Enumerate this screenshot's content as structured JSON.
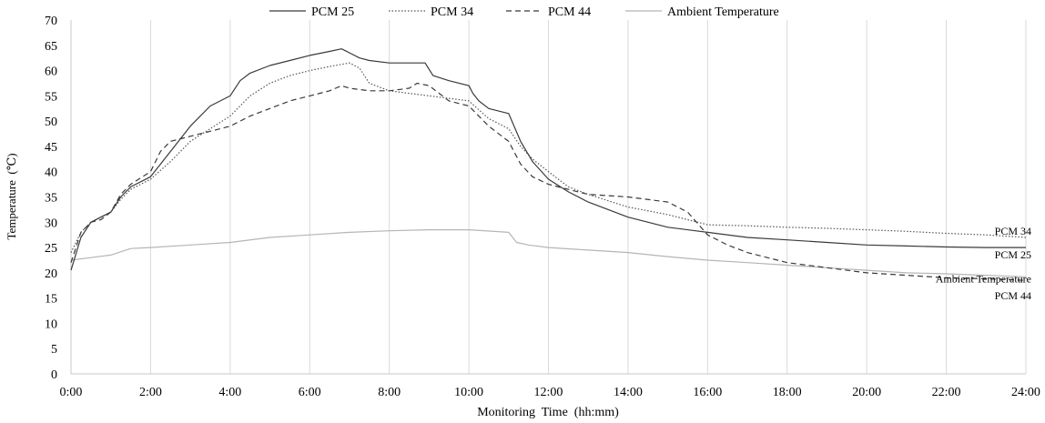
{
  "chart_data": {
    "type": "line",
    "title": "",
    "xlabel": "Monitoring  Time  (hh:mm)",
    "ylabel": "Temperature  (℃)",
    "xlim": [
      0,
      24
    ],
    "ylim": [
      0,
      70
    ],
    "y_ticks": [
      0,
      5,
      10,
      15,
      20,
      25,
      30,
      35,
      40,
      45,
      50,
      55,
      60,
      65,
      70
    ],
    "x_ticks": [
      0,
      2,
      4,
      6,
      8,
      10,
      12,
      14,
      16,
      18,
      20,
      22,
      24
    ],
    "x_tick_labels": [
      "0:00",
      "2:00",
      "4:00",
      "6:00",
      "8:00",
      "10:00",
      "12:00",
      "14:00",
      "16:00",
      "18:00",
      "20:00",
      "22:00",
      "24:00"
    ],
    "legend_position": "top",
    "grid": "vertical",
    "series": [
      {
        "name": "PCM 25",
        "end_label": "PCM 25",
        "color": "#3a3a3a",
        "dash": "solid",
        "x": [
          0,
          0.25,
          0.5,
          0.75,
          1,
          1.25,
          1.5,
          2,
          2.5,
          3,
          3.5,
          4,
          4.25,
          4.5,
          5,
          5.5,
          6,
          6.5,
          6.8,
          7,
          7.25,
          7.5,
          8,
          8.5,
          8.9,
          9.1,
          9.5,
          10,
          10.1,
          10.25,
          10.5,
          11,
          11.3,
          11.6,
          12,
          12.5,
          13,
          14,
          15,
          16,
          17,
          18,
          19,
          20,
          21,
          22,
          23,
          24
        ],
        "y": [
          20.5,
          27,
          30,
          31,
          32,
          35,
          37,
          39,
          44,
          49,
          53,
          55,
          58,
          59.5,
          61,
          62,
          63,
          63.8,
          64.3,
          63.5,
          62.5,
          62,
          61.5,
          61.5,
          61.5,
          59,
          58,
          57,
          55.5,
          54,
          52.5,
          51.5,
          46,
          42,
          38.5,
          36,
          34,
          31,
          29,
          28,
          27,
          26.5,
          26,
          25.5,
          25.3,
          25.1,
          25,
          25
        ]
      },
      {
        "name": "PCM 34",
        "end_label": "PCM 34",
        "color": "#555555",
        "dash": "dotted",
        "x": [
          0,
          0.25,
          0.5,
          0.75,
          1,
          1.25,
          1.5,
          2,
          2.5,
          3,
          3.5,
          4,
          4.5,
          5,
          5.5,
          6,
          6.5,
          7,
          7.25,
          7.5,
          8,
          8.5,
          9,
          9.5,
          10,
          10.5,
          11,
          11.3,
          11.6,
          12,
          12.5,
          13,
          14,
          15,
          16,
          17,
          18,
          19,
          20,
          21,
          22,
          23,
          24
        ],
        "y": [
          24,
          28,
          30,
          31,
          32,
          34.5,
          36.5,
          38.5,
          42,
          46,
          48.5,
          51,
          55,
          57.5,
          59,
          60,
          60.8,
          61.5,
          60.5,
          57.5,
          56,
          55.5,
          55,
          54.5,
          54,
          50.5,
          48.5,
          45,
          42.5,
          40,
          37,
          35.5,
          33,
          31.5,
          29.5,
          29.3,
          29,
          28.8,
          28.5,
          28.2,
          27.8,
          27.5,
          27
        ]
      },
      {
        "name": "PCM 44",
        "end_label": "PCM 44",
        "color": "#3a3a3a",
        "dash": "dashed",
        "x": [
          0,
          0.25,
          0.5,
          0.75,
          1,
          1.25,
          1.5,
          2,
          2.25,
          2.5,
          3,
          3.5,
          4,
          4.5,
          5,
          5.5,
          6,
          6.5,
          6.8,
          7,
          7.5,
          8,
          8.5,
          8.7,
          9,
          9.5,
          10,
          10.5,
          11,
          11.3,
          11.6,
          12,
          12.5,
          13,
          14,
          15,
          15.5,
          16,
          16.5,
          17,
          18,
          19,
          20,
          21,
          22,
          23,
          24
        ],
        "y": [
          22,
          28,
          30,
          30.5,
          32,
          35.5,
          37.5,
          40,
          44,
          46,
          47,
          48,
          49,
          51,
          52.5,
          54,
          55,
          56,
          57,
          56.5,
          56,
          56,
          56.5,
          57.5,
          57,
          54,
          53,
          49,
          46,
          41.5,
          39,
          37.5,
          36.5,
          35.5,
          35,
          34,
          32,
          27.5,
          25.5,
          24,
          22,
          21,
          20,
          19.5,
          19,
          18.8,
          18.5
        ]
      },
      {
        "name": "Ambient Temperature",
        "end_label": "Ambient Temperature",
        "color": "#b5b5b5",
        "dash": "solid",
        "x": [
          0,
          0.5,
          1,
          1.5,
          2,
          3,
          4,
          5,
          6,
          7,
          8,
          9,
          10,
          11,
          11.2,
          11.5,
          12,
          13,
          14,
          15,
          16,
          17,
          18,
          19,
          20,
          21,
          22,
          23,
          24
        ],
        "y": [
          22.5,
          23,
          23.5,
          24.8,
          25,
          25.5,
          26,
          27,
          27.5,
          28,
          28.3,
          28.5,
          28.5,
          28,
          26,
          25.5,
          25,
          24.5,
          24,
          23.2,
          22.5,
          22,
          21.5,
          21,
          20.5,
          20,
          19.8,
          19.5,
          19.2
        ]
      }
    ]
  }
}
